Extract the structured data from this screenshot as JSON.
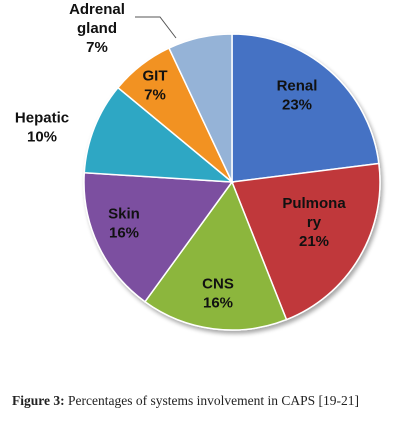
{
  "chart_data": {
    "type": "pie",
    "slices": [
      {
        "label_lines": [
          "Renal"
        ],
        "value": 23,
        "value_label": "23%",
        "color": "#4472c4"
      },
      {
        "label_lines": [
          "Pulmona",
          "ry"
        ],
        "value": 21,
        "value_label": "21%",
        "color": "#c0393b"
      },
      {
        "label_lines": [
          "CNS"
        ],
        "value": 16,
        "value_label": "16%",
        "color": "#8cb63c"
      },
      {
        "label_lines": [
          "Skin"
        ],
        "value": 16,
        "value_label": "16%",
        "color": "#7b4fa0"
      },
      {
        "label_lines": [
          "Hepatic"
        ],
        "value": 10,
        "value_label": "10%",
        "color": "#2ea7c4"
      },
      {
        "label_lines": [
          "GIT"
        ],
        "value": 7,
        "value_label": "7%",
        "color": "#f29222"
      },
      {
        "label_lines": [
          "Adrenal",
          "gland"
        ],
        "value": 7,
        "value_label": "7%",
        "color": "#95b3d7"
      }
    ],
    "title": "",
    "start": "top, clockwise"
  },
  "caption": {
    "prefix": "Figure 3:",
    "text": " Percentages of systems involvement in CAPS [19-21]"
  }
}
